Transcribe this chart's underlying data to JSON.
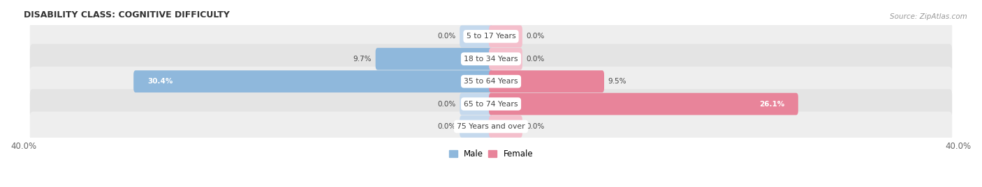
{
  "title": "DISABILITY CLASS: COGNITIVE DIFFICULTY",
  "source": "Source: ZipAtlas.com",
  "categories": [
    "5 to 17 Years",
    "18 to 34 Years",
    "35 to 64 Years",
    "65 to 74 Years",
    "75 Years and over"
  ],
  "male_values": [
    0.0,
    9.7,
    30.4,
    0.0,
    0.0
  ],
  "female_values": [
    0.0,
    0.0,
    9.5,
    26.1,
    0.0
  ],
  "max_val": 40.0,
  "male_color": "#8fb8dc",
  "female_color": "#e8849a",
  "male_color_light": "#c5d9ed",
  "female_color_light": "#f4bfcc",
  "row_color_odd": "#eeeeee",
  "row_color_even": "#e4e4e4",
  "label_color": "#444444",
  "title_color": "#333333",
  "source_color": "#999999",
  "axis_label_color": "#666666",
  "bar_height": 0.62,
  "stub_size": 2.5,
  "figsize": [
    14.06,
    2.69
  ],
  "dpi": 100
}
